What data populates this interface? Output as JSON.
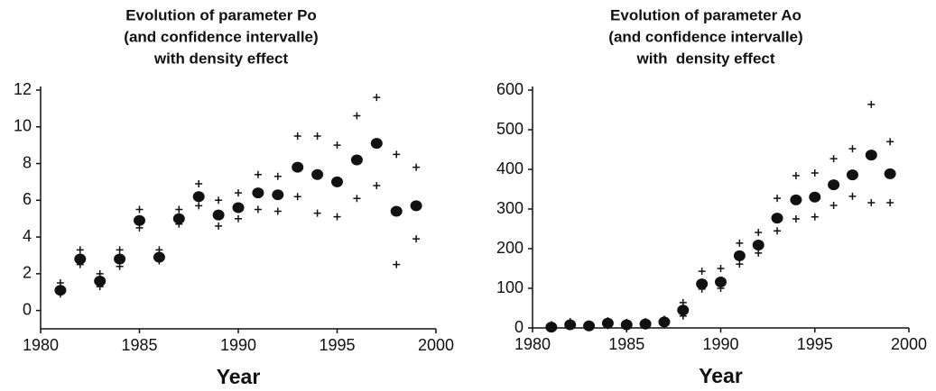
{
  "chart_data": [
    {
      "type": "scatter",
      "title": [
        "Evolution of parameter Po",
        "(and confidence intervalle)",
        "with density effect"
      ],
      "xlabel": "Year",
      "x": [
        1981,
        1982,
        1983,
        1984,
        1985,
        1986,
        1987,
        1988,
        1989,
        1990,
        1991,
        1992,
        1993,
        1994,
        1995,
        1996,
        1997,
        1998,
        1999
      ],
      "series": [
        {
          "marker": "dot",
          "color": "#111111",
          "values": [
            1.1,
            2.8,
            1.6,
            2.8,
            4.9,
            2.9,
            5.0,
            6.2,
            5.2,
            5.6,
            6.4,
            6.3,
            7.8,
            7.4,
            7.0,
            8.2,
            9.1,
            5.4,
            5.7
          ]
        },
        {
          "marker": "plus",
          "color": "#111111",
          "values": [
            1.5,
            3.3,
            2.0,
            3.3,
            5.5,
            3.3,
            5.5,
            6.9,
            6.0,
            6.4,
            7.4,
            7.3,
            9.5,
            9.5,
            9.0,
            10.6,
            11.6,
            8.5,
            7.8
          ]
        },
        {
          "marker": "plus",
          "color": "#111111",
          "values": [
            0.9,
            2.5,
            1.3,
            2.4,
            4.5,
            2.7,
            4.7,
            5.7,
            4.6,
            5.0,
            5.5,
            5.4,
            6.2,
            5.3,
            5.1,
            6.1,
            6.8,
            2.5,
            3.9
          ]
        }
      ],
      "xlim": [
        1980,
        2000
      ],
      "xticks": [
        1980,
        1985,
        1990,
        1995,
        2000
      ],
      "ylim": [
        -1,
        12
      ],
      "yticks": [
        0,
        2,
        4,
        6,
        8,
        10,
        12
      ]
    },
    {
      "type": "scatter",
      "title": [
        "Evolution of parameter Ao",
        "(and confidence intervalle)",
        "with  density effect"
      ],
      "xlabel": "Year",
      "x": [
        1981,
        1982,
        1983,
        1984,
        1985,
        1986,
        1987,
        1988,
        1989,
        1990,
        1991,
        1992,
        1993,
        1994,
        1995,
        1996,
        1997,
        1998,
        1999
      ],
      "series": [
        {
          "marker": "dot",
          "color": "#111111",
          "values": [
            2,
            8,
            5,
            12,
            8,
            10,
            15,
            45,
            111,
            116,
            182,
            209,
            277,
            323,
            330,
            361,
            386,
            436,
            389
          ]
        },
        {
          "marker": "plus",
          "color": "#111111",
          "values": [
            8,
            16,
            10,
            18,
            14,
            16,
            22,
            64,
            143,
            150,
            214,
            241,
            327,
            384,
            391,
            427,
            452,
            564,
            470
          ]
        },
        {
          "marker": "plus",
          "color": "#111111",
          "values": [
            0,
            4,
            1,
            6,
            3,
            5,
            8,
            30,
            98,
            100,
            161,
            189,
            245,
            275,
            280,
            309,
            332,
            316,
            316
          ]
        }
      ],
      "xlim": [
        1980,
        2000
      ],
      "xticks": [
        1980,
        1985,
        1990,
        1995,
        2000
      ],
      "ylim": [
        0,
        600
      ],
      "yticks": [
        0,
        100,
        200,
        300,
        400,
        500,
        600
      ]
    }
  ]
}
